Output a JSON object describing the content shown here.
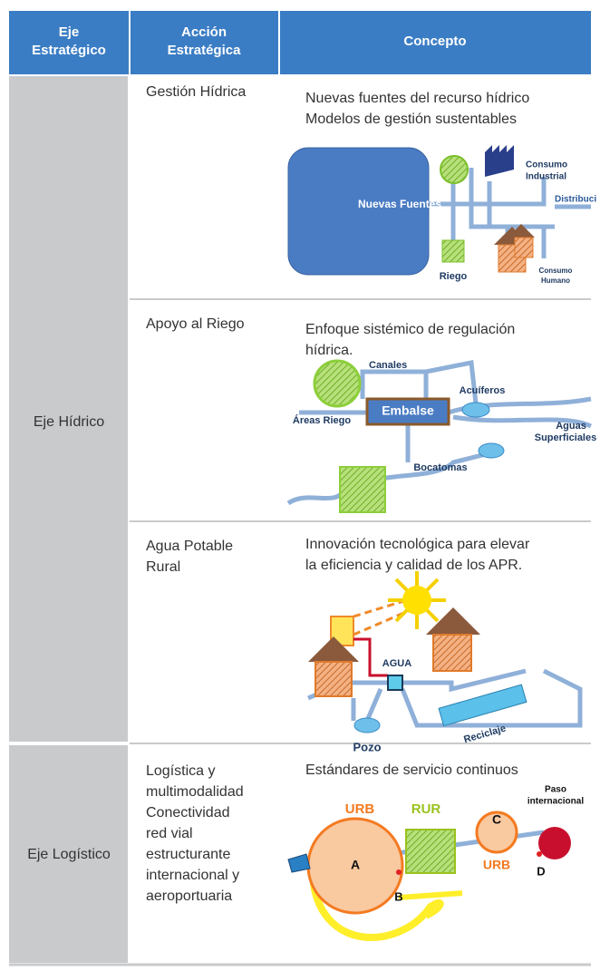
{
  "header": [
    [
      "Eje",
      "Estratégico"
    ],
    [
      "Acción",
      "Estratégica"
    ],
    [
      "Concepto"
    ]
  ],
  "groups": [
    {
      "eje": "Eje Hídrico",
      "rows": [
        {
          "accion": [
            "Gestión Hídrica"
          ],
          "concepto": [
            "Nuevas fuentes del recurso hídrico",
            "Modelos de gestión sustentables"
          ],
          "diagram_labels": [
            "Nuevas Fuentes",
            "Consumo",
            "Industrial",
            "Distribuci",
            "Riego",
            "Consumo",
            "Humano"
          ]
        },
        {
          "accion": [
            "Apoyo al Riego"
          ],
          "concepto": [
            "Enfoque sistémico de regulación",
            "hídrica."
          ],
          "diagram_labels": [
            "Canales",
            "Acuíferos",
            "Áreas Riego",
            "Embalse",
            "Aguas",
            "Superficiales",
            "Bocatomas"
          ]
        },
        {
          "accion": [
            "Agua Potable",
            "Rural"
          ],
          "concepto": [
            "Innovación tecnológica para elevar",
            "la eficiencia y calidad de los APR."
          ],
          "diagram_labels": [
            "AGUA",
            "Pozo",
            "Reciclaje"
          ]
        }
      ]
    },
    {
      "eje": "Eje Logístico",
      "rows": [
        {
          "accion": [
            "Logística y",
            "multimodalidad",
            "Conectividad",
            "red vial",
            "estructurante",
            "internacional y",
            "aeroportuaria"
          ],
          "concepto": [
            "Estándares de servicio continuos"
          ],
          "diagram_labels": [
            "Paso",
            "internacional",
            "URB",
            "RUR",
            "A",
            "C",
            "D",
            "URB",
            "B"
          ]
        }
      ]
    }
  ]
}
